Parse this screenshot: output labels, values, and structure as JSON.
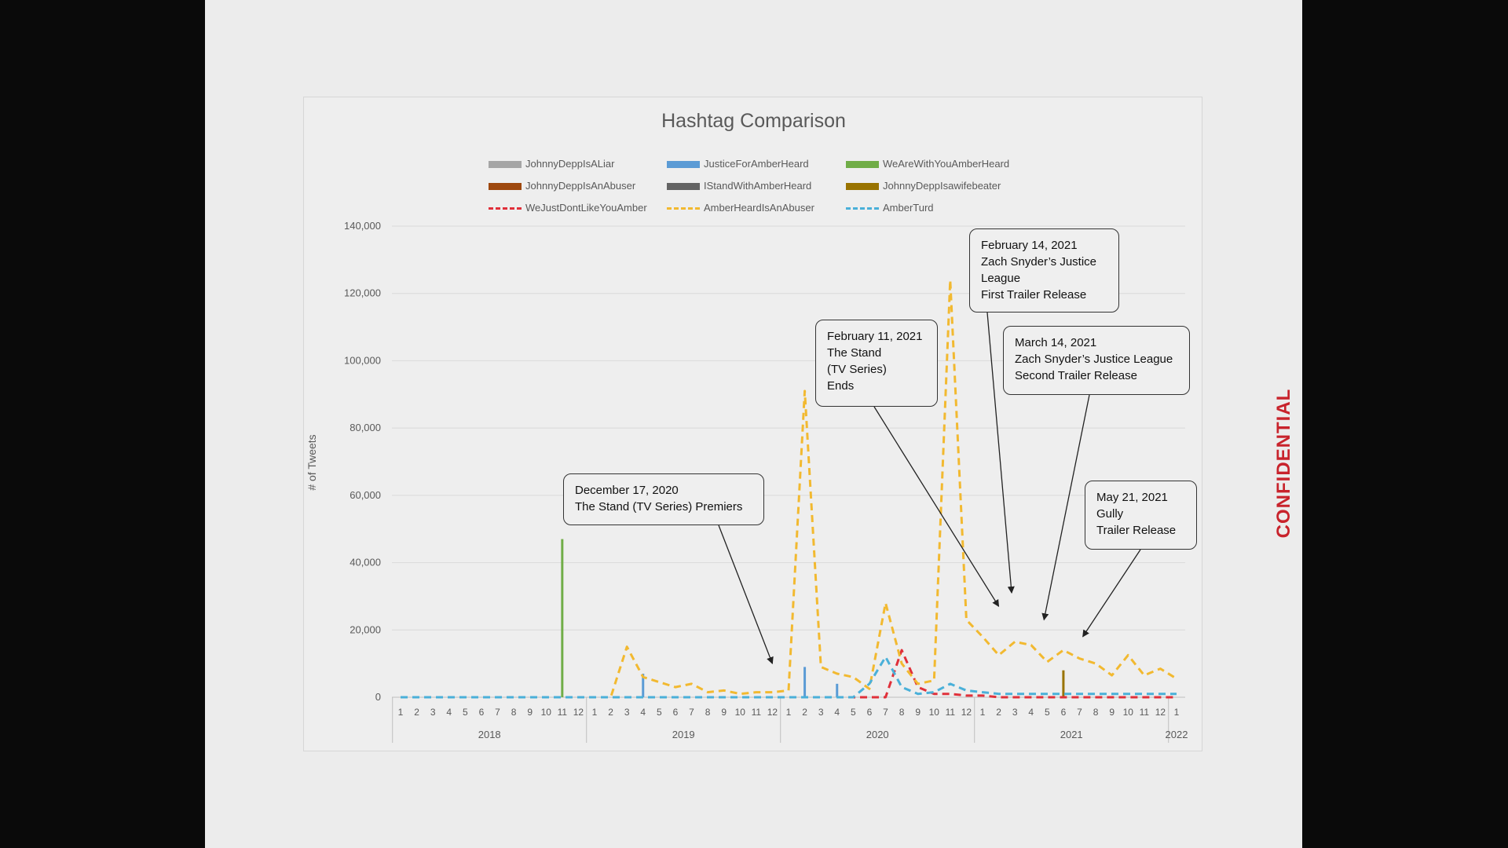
{
  "confidential": "CONFIDENTIAL",
  "chart_data": {
    "type": "line",
    "title": "Hashtag Comparison",
    "xlabel": "",
    "ylabel": "# of Tweets",
    "ylim": [
      0,
      140000
    ],
    "yticks": [
      0,
      20000,
      40000,
      60000,
      80000,
      100000,
      120000,
      140000
    ],
    "ytick_labels": [
      "0",
      "20,000",
      "40,000",
      "60,000",
      "80,000",
      "100,000",
      "120,000",
      "140,000"
    ],
    "grid": true,
    "legend_position": "top",
    "x_month_labels": [
      "1",
      "2",
      "3",
      "4",
      "5",
      "6",
      "7",
      "8",
      "9",
      "10",
      "11",
      "12",
      "1",
      "2",
      "3",
      "4",
      "5",
      "6",
      "7",
      "8",
      "9",
      "10",
      "11",
      "12",
      "1",
      "2",
      "3",
      "4",
      "5",
      "6",
      "7",
      "8",
      "9",
      "10",
      "11",
      "12",
      "1",
      "2",
      "3",
      "4",
      "5",
      "6",
      "7",
      "8",
      "9",
      "10",
      "11",
      "12",
      "1"
    ],
    "x_year_groups": [
      {
        "label": "2018",
        "start": 0,
        "count": 12
      },
      {
        "label": "2019",
        "start": 12,
        "count": 12
      },
      {
        "label": "2020",
        "start": 24,
        "count": 12
      },
      {
        "label": "2021",
        "start": 36,
        "count": 12
      },
      {
        "label": "2022",
        "start": 48,
        "count": 1
      }
    ],
    "series": [
      {
        "name": "JohnnyDeppIsALiar",
        "style": "bar",
        "color": "#a5a5a5",
        "values": [
          0,
          0,
          0,
          0,
          0,
          0,
          0,
          0,
          0,
          0,
          0,
          0,
          0,
          0,
          0,
          0,
          0,
          0,
          0,
          0,
          0,
          0,
          0,
          0,
          0,
          0,
          0,
          0,
          0,
          0,
          0,
          0,
          0,
          0,
          0,
          0,
          0,
          0,
          0,
          0,
          0,
          0,
          0,
          0,
          0,
          0,
          0,
          0,
          0
        ]
      },
      {
        "name": "JusticeForAmberHeard",
        "style": "bar",
        "color": "#5b9bd5",
        "values": [
          0,
          0,
          0,
          0,
          0,
          0,
          0,
          0,
          0,
          0,
          0,
          0,
          0,
          0,
          0,
          7000,
          0,
          0,
          0,
          0,
          0,
          0,
          0,
          0,
          0,
          9000,
          0,
          4000,
          0,
          0,
          0,
          0,
          0,
          0,
          0,
          0,
          0,
          0,
          0,
          0,
          0,
          0,
          0,
          0,
          0,
          0,
          0,
          0,
          0
        ]
      },
      {
        "name": "WeAreWithYouAmberHeard",
        "style": "bar",
        "color": "#70ad47",
        "values": [
          0,
          0,
          0,
          0,
          0,
          0,
          0,
          0,
          0,
          0,
          47000,
          0,
          0,
          0,
          0,
          0,
          0,
          0,
          0,
          0,
          0,
          0,
          0,
          0,
          0,
          0,
          0,
          0,
          0,
          0,
          0,
          0,
          0,
          0,
          0,
          0,
          0,
          0,
          0,
          0,
          0,
          0,
          0,
          0,
          0,
          0,
          0,
          0,
          0
        ]
      },
      {
        "name": "JohnnyDeppIsAnAbuser",
        "style": "bar",
        "color": "#9e480e",
        "values": [
          0,
          0,
          0,
          0,
          0,
          0,
          0,
          0,
          0,
          0,
          0,
          0,
          0,
          0,
          0,
          0,
          0,
          0,
          0,
          0,
          0,
          0,
          0,
          0,
          0,
          0,
          0,
          0,
          0,
          0,
          0,
          0,
          0,
          0,
          0,
          0,
          0,
          0,
          0,
          0,
          0,
          0,
          0,
          0,
          0,
          0,
          0,
          0,
          0
        ]
      },
      {
        "name": "IStandWithAmberHeard",
        "style": "bar",
        "color": "#636363",
        "values": [
          0,
          0,
          0,
          0,
          0,
          0,
          0,
          0,
          0,
          0,
          0,
          0,
          0,
          0,
          0,
          0,
          0,
          0,
          0,
          0,
          0,
          0,
          0,
          0,
          0,
          0,
          0,
          0,
          0,
          0,
          0,
          0,
          0,
          0,
          0,
          0,
          0,
          0,
          0,
          0,
          0,
          0,
          0,
          0,
          0,
          0,
          0,
          0,
          0
        ]
      },
      {
        "name": "JohnnyDeppIsawifebeater",
        "style": "bar",
        "color": "#997300",
        "values": [
          0,
          0,
          0,
          0,
          0,
          0,
          0,
          0,
          0,
          0,
          0,
          0,
          0,
          0,
          0,
          0,
          0,
          0,
          0,
          0,
          0,
          0,
          0,
          0,
          0,
          0,
          0,
          0,
          0,
          0,
          0,
          0,
          0,
          0,
          0,
          0,
          0,
          0,
          0,
          0,
          0,
          8000,
          0,
          0,
          0,
          0,
          0,
          0,
          0
        ]
      },
      {
        "name": "WeJustDontLikeYouAmber",
        "style": "dashed-line",
        "color": "#e0303a",
        "values": [
          0,
          0,
          0,
          0,
          0,
          0,
          0,
          0,
          0,
          0,
          0,
          0,
          0,
          0,
          0,
          0,
          0,
          0,
          0,
          0,
          0,
          0,
          0,
          0,
          0,
          0,
          0,
          0,
          0,
          0,
          0,
          14000,
          3000,
          1000,
          1000,
          500,
          500,
          0,
          0,
          0,
          0,
          0,
          0,
          0,
          0,
          0,
          0,
          0,
          0
        ]
      },
      {
        "name": "AmberHeardIsAnAbuser",
        "style": "dashed-line",
        "color": "#f2b930",
        "values": [
          0,
          0,
          0,
          0,
          0,
          0,
          0,
          0,
          0,
          0,
          0,
          0,
          0,
          0,
          15000,
          6000,
          4500,
          3000,
          4000,
          1500,
          2000,
          1000,
          1500,
          1500,
          2000,
          91000,
          9000,
          7000,
          6000,
          2500,
          28000,
          10000,
          4000,
          5000,
          124000,
          23000,
          18000,
          12500,
          16500,
          15500,
          10500,
          14000,
          11500,
          10000,
          6500,
          12500,
          6500,
          8500,
          5500
        ]
      },
      {
        "name": "AmberTurd",
        "style": "dashed-line",
        "color": "#4ab0d9",
        "values": [
          0,
          0,
          0,
          0,
          0,
          0,
          0,
          0,
          0,
          0,
          0,
          0,
          0,
          0,
          0,
          0,
          0,
          0,
          0,
          0,
          0,
          0,
          0,
          0,
          0,
          0,
          0,
          0,
          0,
          4000,
          12000,
          3000,
          1000,
          1500,
          4000,
          2000,
          1500,
          1000,
          1000,
          1000,
          1000,
          1000,
          1000,
          1000,
          1000,
          1000,
          1000,
          1000,
          1000
        ]
      }
    ],
    "annotations": [
      {
        "lines": [
          "December 17, 2020",
          "The Stand (TV Series) Premiers"
        ],
        "target": {
          "x": 23,
          "y": 10000
        }
      },
      {
        "lines": [
          "February 11, 2021",
          "The Stand",
          "(TV Series)",
          "Ends"
        ],
        "target": {
          "x": 37,
          "y": 27000
        }
      },
      {
        "lines": [
          "February 14, 2021",
          "Zach Snyder’s Justice",
          "League",
          "First Trailer Release"
        ],
        "target": {
          "x": 37.8,
          "y": 31000
        }
      },
      {
        "lines": [
          "March 14, 2021",
          "Zach Snyder’s Justice League",
          "Second Trailer Release"
        ],
        "target": {
          "x": 39.8,
          "y": 23000
        }
      },
      {
        "lines": [
          "May 21, 2021",
          "Gully",
          "Trailer Release"
        ],
        "target": {
          "x": 42.2,
          "y": 18000
        }
      }
    ]
  }
}
